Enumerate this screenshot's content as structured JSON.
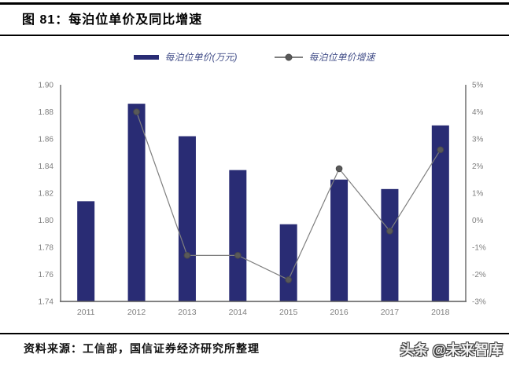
{
  "title": "图 81：每泊位单价及同比增速",
  "footer": {
    "source": "资料来源：工信部，国信证券经济研究所整理",
    "watermark": "头条 @未来智库"
  },
  "colors": {
    "bar": "#292C74",
    "line": "#7F7F7F",
    "marker": "#595959",
    "marker_border": "#4a4a4a",
    "axis": "#595959",
    "tick_label": "#7F7F7F",
    "legend_text": "#44508A"
  },
  "chart_data": {
    "type": "bar",
    "subtype": "bar+line combo, dual axis",
    "title": "每泊位单价及同比增速",
    "categories": [
      "2011",
      "2012",
      "2013",
      "2014",
      "2015",
      "2016",
      "2017",
      "2018"
    ],
    "series": [
      {
        "name": "每泊位单价(万元)",
        "type": "bar",
        "axis": "left",
        "values": [
          1.814,
          1.886,
          1.862,
          1.837,
          1.797,
          1.83,
          1.823,
          1.87
        ]
      },
      {
        "name": "每泊位单价增速",
        "type": "line",
        "axis": "right",
        "unit": "%",
        "values": [
          null,
          4.0,
          -1.3,
          -1.3,
          -2.2,
          1.9,
          -0.4,
          2.6
        ]
      }
    ],
    "left_axis": {
      "min": 1.74,
      "max": 1.9,
      "ticks": [
        "1.90",
        "1.88",
        "1.86",
        "1.84",
        "1.82",
        "1.80",
        "1.78",
        "1.76",
        "1.74"
      ]
    },
    "right_axis": {
      "min": -3,
      "max": 5,
      "ticks": [
        "5%",
        "4%",
        "3%",
        "2%",
        "1%",
        "0%",
        "-1%",
        "-2%",
        "-3%"
      ]
    },
    "grid": false,
    "legend_position": "top"
  }
}
